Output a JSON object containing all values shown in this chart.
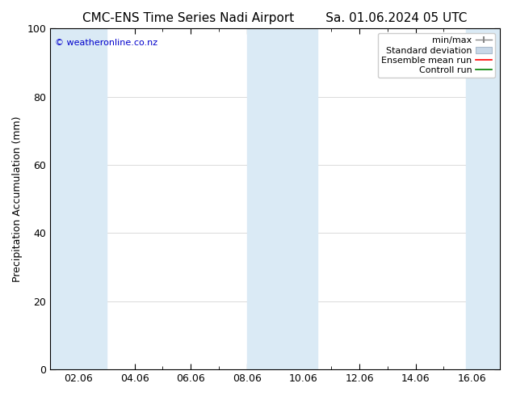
{
  "title_left": "CMC-ENS Time Series Nadi Airport",
  "title_right": "Sa. 01.06.2024 05 UTC",
  "ylabel": "Precipitation Accumulation (mm)",
  "watermark": "© weatheronline.co.nz",
  "watermark_color": "#0000cc",
  "ylim": [
    0,
    100
  ],
  "yticks": [
    0,
    20,
    40,
    60,
    80,
    100
  ],
  "xtick_labels": [
    "02.06",
    "04.06",
    "06.06",
    "08.06",
    "10.06",
    "12.06",
    "14.06",
    "16.06"
  ],
  "xtick_positions": [
    1,
    3,
    5,
    7,
    9,
    11,
    13,
    15
  ],
  "xlim": [
    0,
    16
  ],
  "background_color": "#ffffff",
  "plot_bg_color": "#ffffff",
  "shaded_bands": [
    {
      "x_start": 0.0,
      "x_end": 2.0,
      "color": "#daeaf5"
    },
    {
      "x_start": 7.0,
      "x_end": 9.5,
      "color": "#daeaf5"
    },
    {
      "x_start": 14.8,
      "x_end": 16.0,
      "color": "#daeaf5"
    }
  ],
  "legend_entries": [
    {
      "label": "min/max",
      "color": "#a0a0a0",
      "type": "errorbar"
    },
    {
      "label": "Standard deviation",
      "color": "#c8d8e8",
      "type": "fill"
    },
    {
      "label": "Ensemble mean run",
      "color": "#ff0000",
      "type": "line"
    },
    {
      "label": "Controll run",
      "color": "#008000",
      "type": "line"
    }
  ],
  "title_fontsize": 11,
  "axis_label_fontsize": 9,
  "tick_fontsize": 9,
  "legend_fontsize": 8,
  "watermark_fontsize": 8
}
